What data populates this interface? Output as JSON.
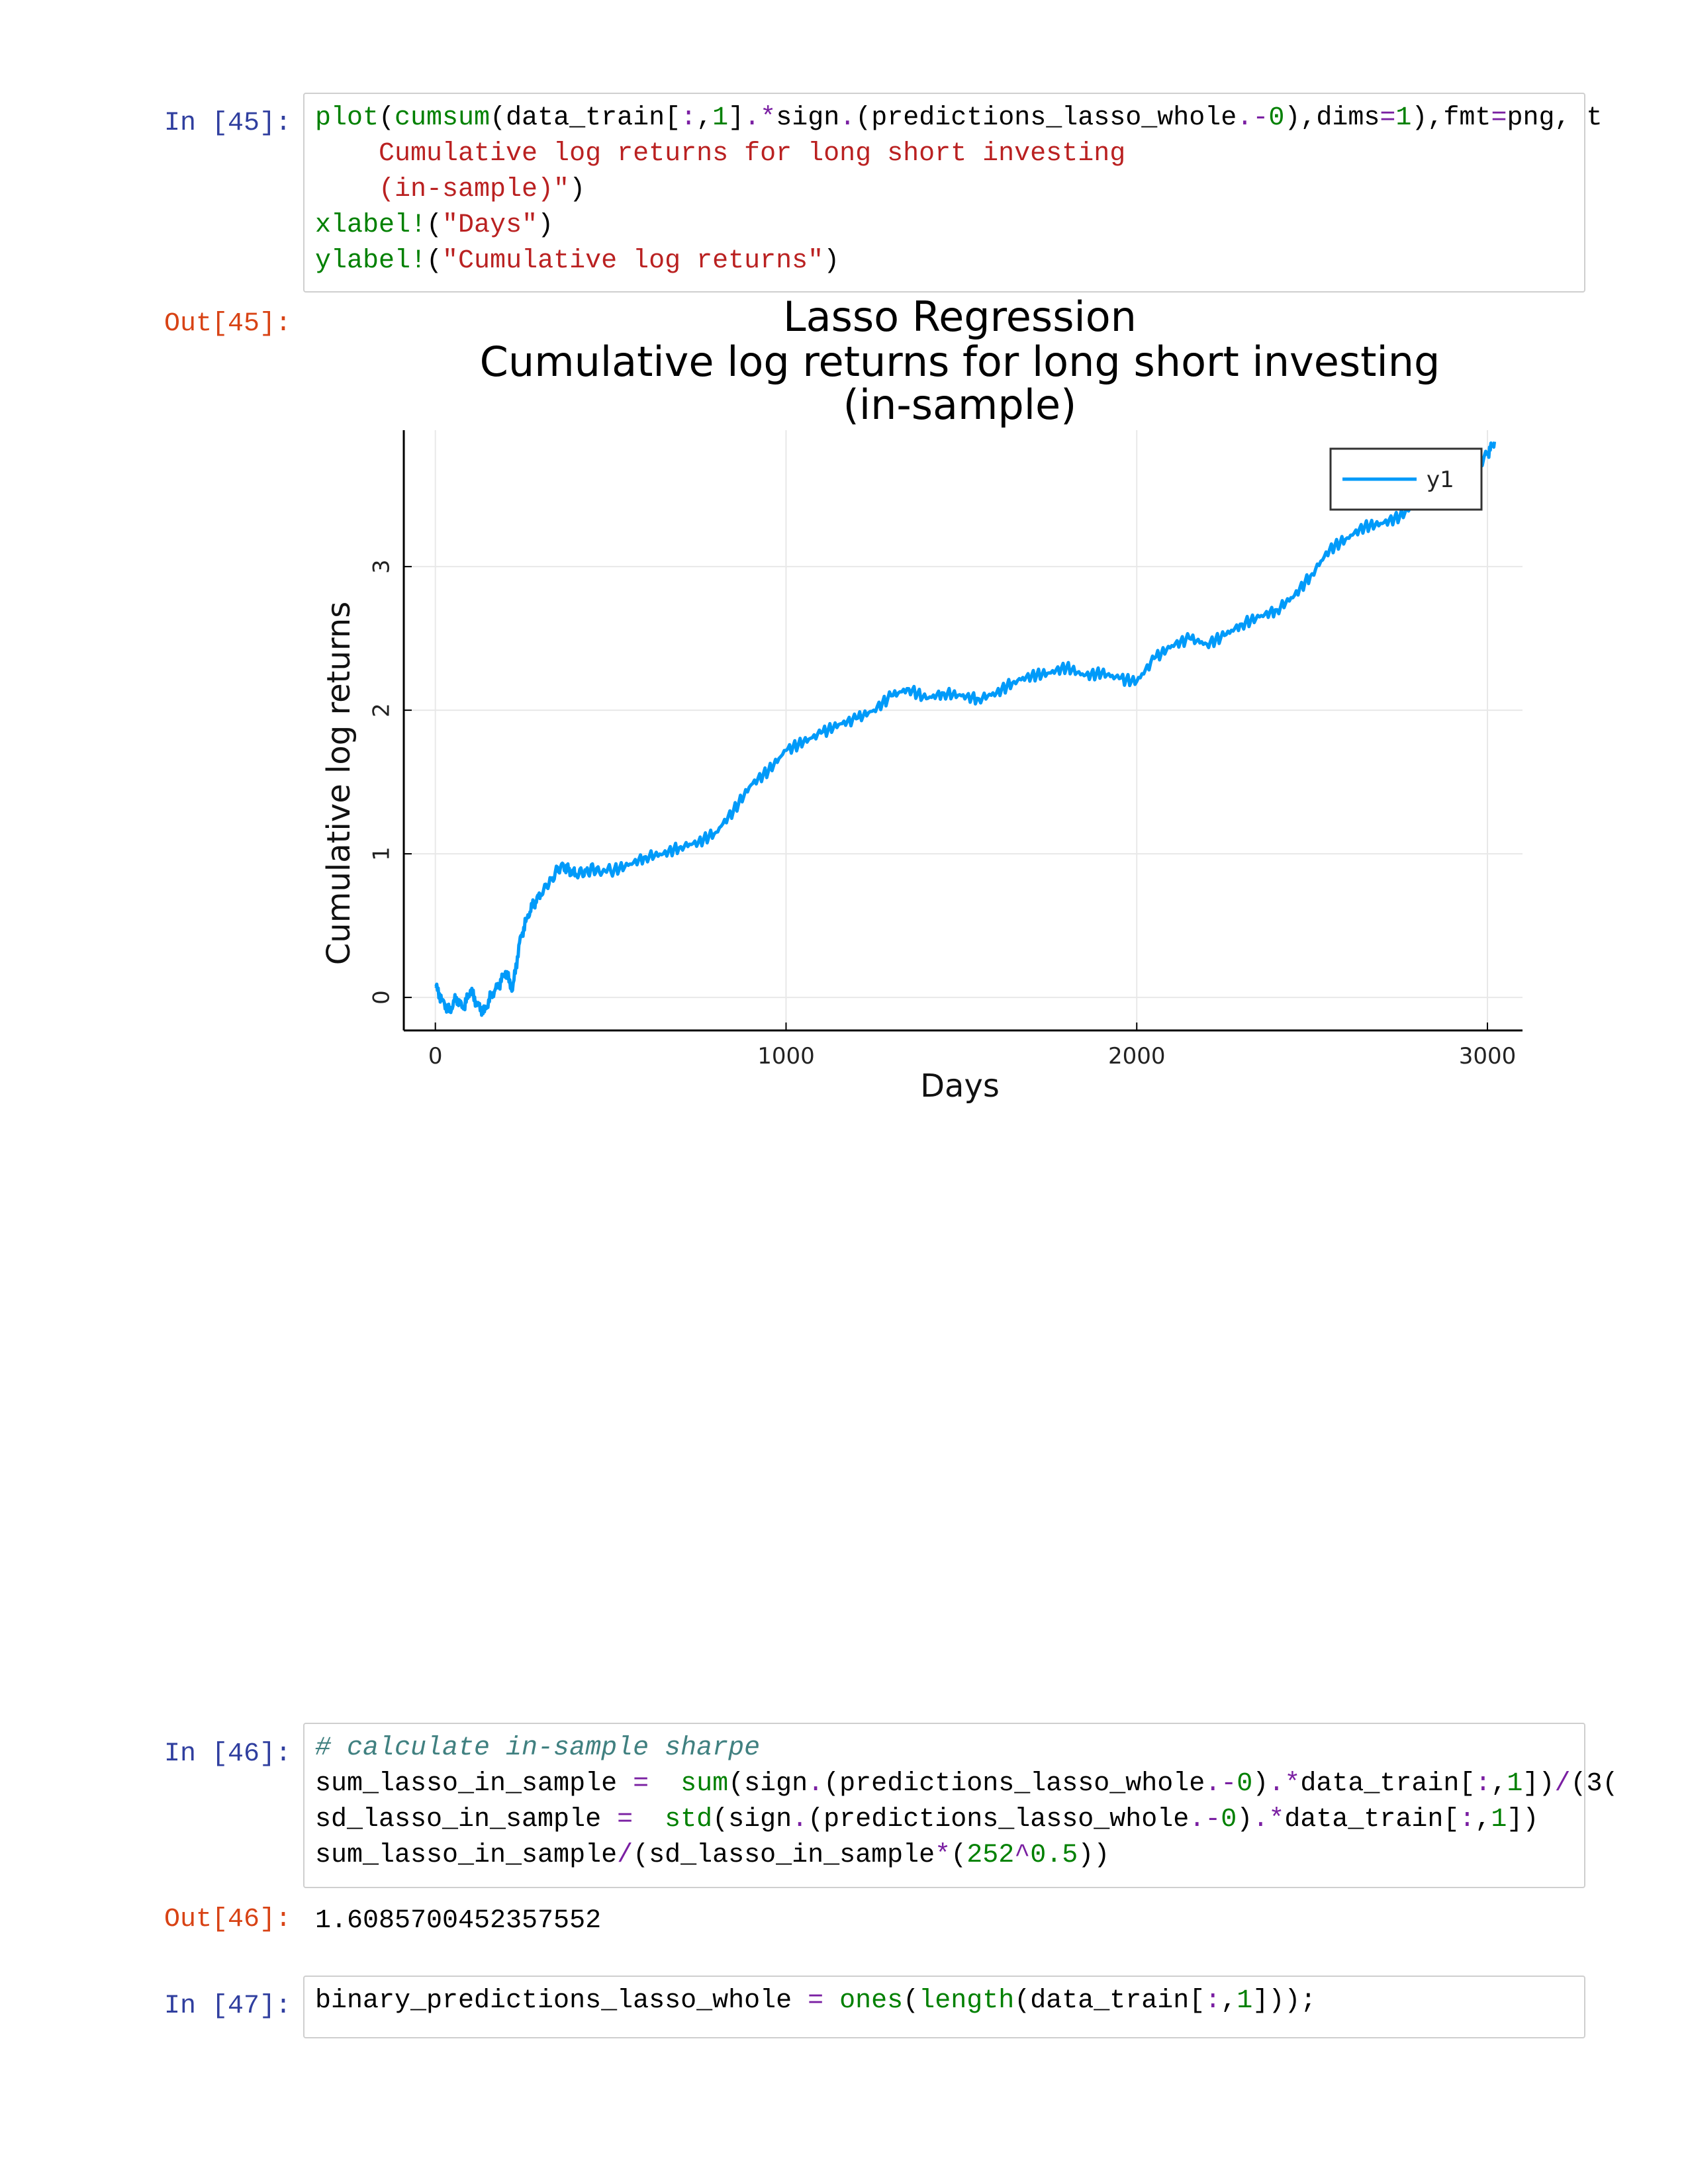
{
  "cells": [
    {
      "in_prompt": "In [45]:",
      "out_prompt": "Out[45]:",
      "code_lines": [
        [
          [
            "kw",
            "plot"
          ],
          [
            "",
            "("
          ],
          [
            "kw",
            "cumsum"
          ],
          [
            "",
            "(data_train["
          ],
          [
            "op",
            ":"
          ],
          [
            "",
            ","
          ],
          [
            "num",
            "1"
          ],
          [
            "",
            "]"
          ],
          [
            "op",
            ".*"
          ],
          [
            "",
            "sign"
          ],
          [
            "op",
            "."
          ],
          [
            "",
            "(predictions_lasso_whole"
          ],
          [
            "op",
            ".-"
          ],
          [
            "num",
            "0"
          ],
          [
            "",
            "),dims"
          ],
          [
            "op",
            "="
          ],
          [
            "num",
            "1"
          ],
          [
            "",
            "),fmt"
          ],
          [
            "op",
            "="
          ],
          [
            "",
            "png, t"
          ]
        ],
        [
          [
            "str",
            "    Cumulative log returns for long short investing"
          ]
        ],
        [
          [
            "str",
            "    (in-sample)\""
          ],
          [
            "",
            ")"
          ]
        ],
        [
          [
            "kw",
            "xlabel!"
          ],
          [
            "",
            "("
          ],
          [
            "str",
            "\"Days\""
          ],
          [
            "",
            ")"
          ]
        ],
        [
          [
            "kw",
            "ylabel!"
          ],
          [
            "",
            "("
          ],
          [
            "str",
            "\"Cumulative log returns\""
          ],
          [
            "",
            ")"
          ]
        ]
      ]
    },
    {
      "in_prompt": "In [46]:",
      "out_prompt": "Out[46]:",
      "output_text": "1.6085700452357552",
      "code_lines": [
        [
          [
            "cm",
            "# calculate in-sample sharpe"
          ]
        ],
        [
          [
            "",
            "sum_lasso_in_sample "
          ],
          [
            "op",
            "="
          ],
          [
            "",
            "  "
          ],
          [
            "kw",
            "sum"
          ],
          [
            "",
            "(sign"
          ],
          [
            "op",
            "."
          ],
          [
            "",
            "(predictions_lasso_whole"
          ],
          [
            "op",
            ".-"
          ],
          [
            "num",
            "0"
          ],
          [
            "",
            ")"
          ],
          [
            "op",
            ".*"
          ],
          [
            "",
            "data_train["
          ],
          [
            "op",
            ":"
          ],
          [
            "",
            ","
          ],
          [
            "num",
            "1"
          ],
          [
            "",
            "])"
          ],
          [
            "op",
            "/"
          ],
          [
            "",
            "(3("
          ]
        ],
        [
          [
            "",
            "sd_lasso_in_sample "
          ],
          [
            "op",
            "="
          ],
          [
            "",
            "  "
          ],
          [
            "kw",
            "std"
          ],
          [
            "",
            "(sign"
          ],
          [
            "op",
            "."
          ],
          [
            "",
            "(predictions_lasso_whole"
          ],
          [
            "op",
            ".-"
          ],
          [
            "num",
            "0"
          ],
          [
            "",
            ")"
          ],
          [
            "op",
            ".*"
          ],
          [
            "",
            "data_train["
          ],
          [
            "op",
            ":"
          ],
          [
            "",
            ","
          ],
          [
            "num",
            "1"
          ],
          [
            "",
            "])"
          ]
        ],
        [
          [
            "",
            "sum_lasso_in_sample"
          ],
          [
            "op",
            "/"
          ],
          [
            "",
            "(sd_lasso_in_sample"
          ],
          [
            "op",
            "*"
          ],
          [
            "",
            "("
          ],
          [
            "num",
            "252"
          ],
          [
            "op",
            "^"
          ],
          [
            "num",
            "0.5"
          ],
          [
            "",
            "))"
          ]
        ]
      ]
    },
    {
      "in_prompt": "In [47]:",
      "code_lines": [
        [
          [
            "",
            "binary_predictions_lasso_whole "
          ],
          [
            "op",
            "="
          ],
          [
            "",
            ""
          ],
          [
            "kw",
            " ones"
          ],
          [
            "",
            "("
          ],
          [
            "kw",
            "length"
          ],
          [
            "",
            "(data_train["
          ],
          [
            "op",
            ":"
          ],
          [
            "",
            ","
          ],
          [
            "num",
            "1"
          ],
          [
            "",
            "]));"
          ]
        ]
      ]
    }
  ],
  "chart_data": {
    "type": "line",
    "title_lines": [
      "Lasso Regression",
      "Cumulative log returns for long short investing",
      "(in-sample)"
    ],
    "xlabel": "Days",
    "ylabel": "Cumulative log returns",
    "xlim": [
      -90,
      3100
    ],
    "ylim": [
      -0.23,
      3.95
    ],
    "xticks": [
      0,
      1000,
      2000,
      3000
    ],
    "yticks": [
      0,
      1,
      2,
      3
    ],
    "grid": true,
    "legend": "top-right",
    "series": [
      {
        "name": "y1",
        "color": "#009af9",
        "x": [
          0,
          20,
          40,
          60,
          80,
          100,
          120,
          140,
          160,
          180,
          200,
          220,
          240,
          260,
          280,
          300,
          330,
          360,
          380,
          400,
          430,
          460,
          500,
          550,
          600,
          650,
          700,
          750,
          800,
          850,
          900,
          950,
          1000,
          1050,
          1100,
          1150,
          1200,
          1250,
          1300,
          1350,
          1400,
          1450,
          1500,
          1550,
          1600,
          1650,
          1700,
          1750,
          1800,
          1850,
          1900,
          1950,
          2000,
          2050,
          2100,
          2150,
          2200,
          2250,
          2300,
          2350,
          2400,
          2450,
          2500,
          2550,
          2600,
          2650,
          2700,
          2750,
          2800,
          2850,
          2900,
          2950,
          3000,
          3020
        ],
        "y": [
          0.08,
          -0.02,
          -0.1,
          0.0,
          -0.08,
          0.05,
          -0.05,
          -0.1,
          0.02,
          0.08,
          0.18,
          0.05,
          0.38,
          0.55,
          0.65,
          0.72,
          0.82,
          0.93,
          0.88,
          0.86,
          0.88,
          0.9,
          0.88,
          0.92,
          0.98,
          1.0,
          1.05,
          1.08,
          1.15,
          1.3,
          1.48,
          1.58,
          1.72,
          1.78,
          1.84,
          1.9,
          1.94,
          2.0,
          2.1,
          2.15,
          2.08,
          2.12,
          2.1,
          2.08,
          2.12,
          2.2,
          2.24,
          2.26,
          2.3,
          2.24,
          2.26,
          2.22,
          2.2,
          2.36,
          2.45,
          2.5,
          2.46,
          2.52,
          2.6,
          2.65,
          2.7,
          2.8,
          2.95,
          3.12,
          3.2,
          3.28,
          3.3,
          3.35,
          3.45,
          3.5,
          3.55,
          3.65,
          3.78,
          3.87
        ]
      }
    ]
  }
}
